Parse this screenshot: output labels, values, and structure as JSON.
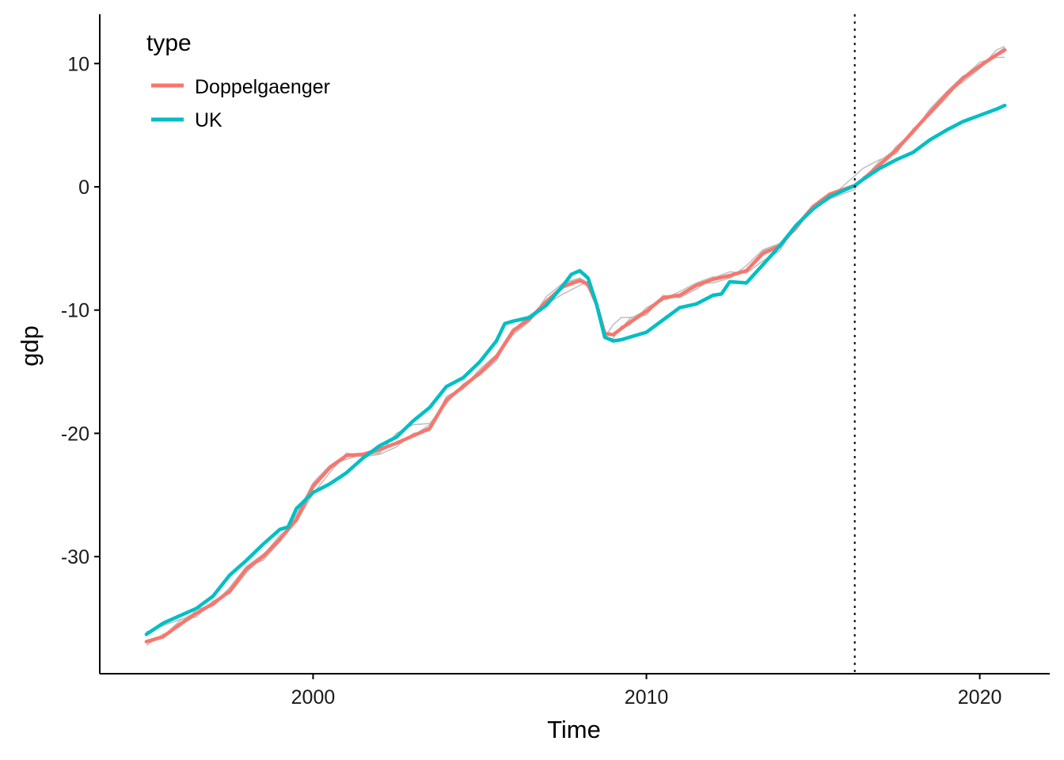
{
  "chart_data": {
    "type": "line",
    "xlabel": "Time",
    "ylabel": "gdp",
    "xlim": [
      1993.6,
      2022.1
    ],
    "ylim": [
      -39.5,
      14.0
    ],
    "x_ticks": [
      2000,
      2010,
      2020
    ],
    "y_ticks": [
      -30,
      -20,
      -10,
      0,
      10
    ],
    "x_tick_labels": [
      "2000",
      "2010",
      "2020"
    ],
    "y_tick_labels": [
      "-30",
      "-20",
      "-10",
      "0",
      "10"
    ],
    "grid": false,
    "treatment_line": {
      "x": 2016.25,
      "style": "dotted"
    },
    "legend": {
      "title": "type",
      "position": "top-left",
      "entries": [
        {
          "label": "Doppelgaenger",
          "color": "#F8766D"
        },
        {
          "label": "UK",
          "color": "#00BFC4"
        }
      ]
    },
    "placebo_color": "#BDBDBD",
    "placebo_offsets": [
      [
        0,
        0,
        0.3,
        0.1,
        -0.2,
        0,
        0.2,
        0.2,
        -0.2,
        0.1,
        0.2,
        0.2,
        -0.3,
        0,
        -0.2
      ],
      [
        0.8,
        0.9,
        0.4,
        -0.3,
        0.2,
        -0.2,
        -0.3,
        0.1,
        0.3,
        -0.2,
        -0.6,
        -0.4,
        0.2,
        -0.1,
        -0.3
      ],
      [
        -0.3,
        0.2,
        -0.2,
        0.3,
        -0.1,
        0.3,
        0.2,
        -0.3,
        -0.2,
        0.4,
        0.3,
        0.2,
        0.1,
        -0.2,
        -0.4
      ]
    ],
    "series": [
      {
        "name": "Doppelgaenger",
        "color": "#F8766D",
        "x": [
          1995.0,
          1995.5,
          1996.0,
          1996.5,
          1997.0,
          1997.5,
          1998.0,
          1998.5,
          1999.0,
          1999.5,
          2000.0,
          2000.5,
          2001.0,
          2001.5,
          2002.0,
          2002.5,
          2003.0,
          2003.5,
          2004.0,
          2004.5,
          2005.0,
          2005.5,
          2006.0,
          2006.5,
          2007.0,
          2007.5,
          2008.0,
          2008.25,
          2008.5,
          2008.75,
          2009.0,
          2009.25,
          2009.5,
          2010.0,
          2010.5,
          2011.0,
          2011.5,
          2012.0,
          2012.5,
          2013.0,
          2013.5,
          2014.0,
          2014.5,
          2015.0,
          2015.5,
          2016.25,
          2016.5,
          2017.0,
          2017.5,
          2018.0,
          2018.5,
          2019.0,
          2019.5,
          2020.0,
          2020.5,
          2020.75
        ],
        "values": [
          -36.9,
          -36.5,
          -35.5,
          -34.6,
          -33.8,
          -32.8,
          -31.0,
          -30.0,
          -28.6,
          -27.0,
          -24.3,
          -22.8,
          -21.8,
          -21.7,
          -21.3,
          -20.8,
          -20.2,
          -19.6,
          -17.3,
          -16.2,
          -15.1,
          -13.8,
          -11.7,
          -10.7,
          -9.3,
          -8.1,
          -7.6,
          -7.9,
          -9.5,
          -11.9,
          -12.0,
          -11.5,
          -11.0,
          -10.1,
          -9.0,
          -8.8,
          -8.0,
          -7.5,
          -7.2,
          -6.8,
          -5.4,
          -4.8,
          -3.2,
          -1.6,
          -0.6,
          0.1,
          0.6,
          1.8,
          3.0,
          4.5,
          6.0,
          7.5,
          8.8,
          9.8,
          10.7,
          11.1
        ]
      },
      {
        "name": "UK",
        "color": "#00BFC4",
        "x": [
          1995.0,
          1995.5,
          1996.0,
          1996.5,
          1997.0,
          1997.5,
          1998.0,
          1998.5,
          1999.0,
          1999.25,
          1999.5,
          2000.0,
          2000.5,
          2001.0,
          2001.5,
          2002.0,
          2002.5,
          2003.0,
          2003.5,
          2004.0,
          2004.5,
          2005.0,
          2005.5,
          2005.75,
          2006.0,
          2006.5,
          2007.0,
          2007.5,
          2007.75,
          2008.0,
          2008.25,
          2008.5,
          2008.75,
          2009.0,
          2009.25,
          2009.5,
          2010.0,
          2010.5,
          2011.0,
          2011.5,
          2012.0,
          2012.25,
          2012.5,
          2013.0,
          2013.5,
          2014.0,
          2014.5,
          2015.0,
          2015.5,
          2016.25,
          2016.5,
          2017.0,
          2017.5,
          2018.0,
          2018.5,
          2019.0,
          2019.5,
          2020.0,
          2020.5,
          2020.75
        ],
        "values": [
          -36.3,
          -35.4,
          -34.8,
          -34.2,
          -33.2,
          -31.5,
          -30.3,
          -29.0,
          -27.8,
          -27.6,
          -26.1,
          -24.8,
          -24.1,
          -23.2,
          -22.0,
          -21.0,
          -20.3,
          -19.0,
          -17.9,
          -16.2,
          -15.5,
          -14.2,
          -12.5,
          -11.1,
          -10.9,
          -10.6,
          -9.6,
          -8.0,
          -7.1,
          -6.8,
          -7.4,
          -9.5,
          -12.2,
          -12.5,
          -12.4,
          -12.2,
          -11.8,
          -10.8,
          -9.8,
          -9.5,
          -8.8,
          -8.7,
          -7.7,
          -7.8,
          -6.3,
          -4.8,
          -3.1,
          -1.8,
          -0.8,
          0.1,
          0.6,
          1.5,
          2.2,
          2.8,
          3.8,
          4.6,
          5.3,
          5.8,
          6.3,
          6.6
        ]
      }
    ]
  }
}
